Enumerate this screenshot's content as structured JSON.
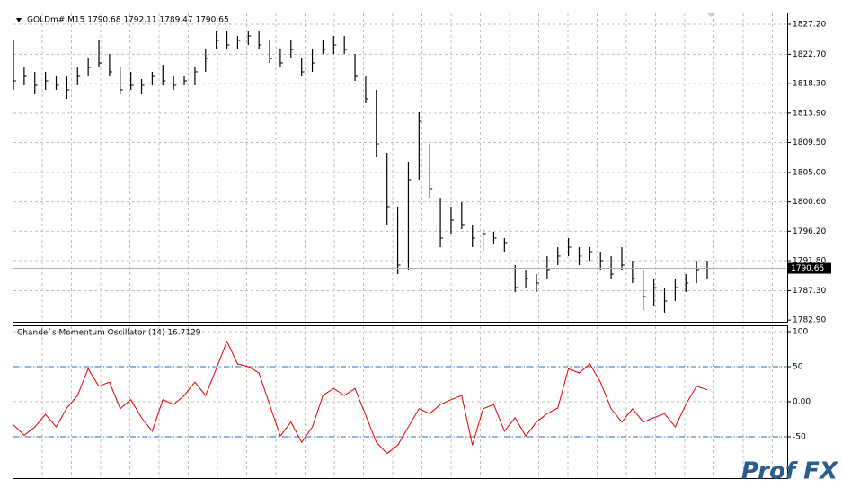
{
  "chart_data": [
    {
      "type": "ohlc",
      "title": "GOLDm#,M15  1790.68 1792.11 1789.47 1790.65",
      "high": [
        1824.78,
        1820.74,
        1820.07,
        1820.07,
        1819.39,
        1819.39,
        1820.74,
        1822.09,
        1824.78,
        1822.76,
        1820.74,
        1820.07,
        1818.99,
        1820.07,
        1821.14,
        1819.39,
        1819.39,
        1820.74,
        1823.43,
        1826.12,
        1826.12,
        1825.45,
        1826.12,
        1826.12,
        1824.78,
        1823.43,
        1824.78,
        1822.09,
        1823.43,
        1824.78,
        1825.45,
        1825.45,
        1822.76,
        1819.39,
        1817.38,
        1807.95,
        1799.88,
        1806.61,
        1814.01,
        1809.3,
        1801.22,
        1799.88,
        1800.55,
        1797.19,
        1796.51,
        1796.11,
        1795.17,
        1791.13,
        1790.46,
        1789.78,
        1792.48,
        1793.82,
        1795.17,
        1793.82,
        1793.82,
        1793.15,
        1792.48,
        1793.82,
        1791.8,
        1790.46,
        1789.11,
        1787.76,
        1789.11,
        1789.78,
        1791.8,
        1791.8
      ],
      "low": [
        1817.38,
        1818.05,
        1816.7,
        1817.38,
        1817.38,
        1816.03,
        1818.05,
        1819.39,
        1820.74,
        1819.39,
        1816.7,
        1817.38,
        1816.7,
        1818.05,
        1818.05,
        1817.38,
        1818.05,
        1818.05,
        1820.07,
        1823.43,
        1823.43,
        1823.43,
        1824.1,
        1823.43,
        1821.41,
        1820.74,
        1822.09,
        1819.39,
        1820.07,
        1822.76,
        1822.76,
        1822.76,
        1818.72,
        1815.36,
        1807.28,
        1797.19,
        1789.78,
        1790.46,
        1803.92,
        1801.22,
        1793.82,
        1795.84,
        1796.51,
        1793.82,
        1793.15,
        1794.23,
        1793.15,
        1787.09,
        1787.76,
        1787.09,
        1789.11,
        1791.13,
        1792.48,
        1791.13,
        1791.8,
        1790.46,
        1789.11,
        1790.46,
        1788.44,
        1784.4,
        1785.07,
        1784.0,
        1785.75,
        1787.09,
        1788.44,
        1789.11
      ],
      "close": [
        1818.72,
        1819.39,
        1818.05,
        1818.72,
        1818.05,
        1817.38,
        1819.39,
        1820.74,
        1821.41,
        1820.07,
        1817.38,
        1818.05,
        1818.05,
        1819.39,
        1818.72,
        1818.05,
        1818.72,
        1820.07,
        1822.09,
        1824.78,
        1824.1,
        1824.78,
        1825.45,
        1824.1,
        1822.09,
        1821.41,
        1823.43,
        1820.07,
        1821.41,
        1823.43,
        1824.1,
        1823.43,
        1819.39,
        1816.03,
        1809.3,
        1799.88,
        1791.13,
        1803.92,
        1812.66,
        1802.57,
        1795.17,
        1797.86,
        1797.19,
        1795.17,
        1795.84,
        1795.17,
        1794.5,
        1787.76,
        1789.11,
        1788.44,
        1790.46,
        1792.48,
        1793.82,
        1792.48,
        1793.15,
        1791.8,
        1789.78,
        1791.13,
        1789.11,
        1786.42,
        1787.76,
        1785.75,
        1787.76,
        1788.44,
        1790.46,
        1790.65
      ],
      "ylim": [
        1782.65,
        1828.95
      ],
      "yticks": [
        {
          "value": 1827.2,
          "label": "1827.20"
        },
        {
          "value": 1822.7,
          "label": "1822.70"
        },
        {
          "value": 1818.3,
          "label": "1818.30"
        },
        {
          "value": 1813.9,
          "label": "1813.90"
        },
        {
          "value": 1809.5,
          "label": "1809.50"
        },
        {
          "value": 1805.0,
          "label": "1805.00"
        },
        {
          "value": 1800.6,
          "label": "1800.60"
        },
        {
          "value": 1796.2,
          "label": "1796.20"
        },
        {
          "value": 1791.8,
          "label": "1791.80"
        },
        {
          "value": 1787.3,
          "label": "1787.30"
        },
        {
          "value": 1782.9,
          "label": "1782.90"
        }
      ],
      "current_price": 1790.65,
      "color": "#000000",
      "grid": true
    },
    {
      "type": "line",
      "title": "Chande`s Momentum Oscillator (14) 16.7129",
      "values": [
        -33,
        -48,
        -36,
        -18,
        -36,
        -9,
        9,
        47,
        22,
        28,
        -10,
        3,
        -23,
        -42,
        3,
        -4,
        9,
        28,
        9,
        47,
        86,
        54,
        50,
        41,
        -4,
        -49,
        -29,
        -58,
        -36,
        9,
        19,
        9,
        19,
        -19,
        -58,
        -74,
        -62,
        -36,
        -10,
        -17,
        -4,
        3,
        9,
        -62,
        -10,
        -4,
        -42,
        -23,
        -49,
        -29,
        -17,
        -9,
        47,
        41,
        54,
        28,
        -10,
        -29,
        -10,
        -29,
        -23,
        -17,
        -36,
        -4,
        22,
        17
      ],
      "color": "#e00000",
      "ylim": [
        -100,
        100
      ],
      "yticks": [
        100,
        50,
        {
          "value": 0,
          "label": "0.00"
        },
        -50
      ],
      "levels": [
        50,
        -50
      ],
      "level_color": "#1e6fc8",
      "grid": true
    }
  ],
  "watermark": "Prof FX"
}
